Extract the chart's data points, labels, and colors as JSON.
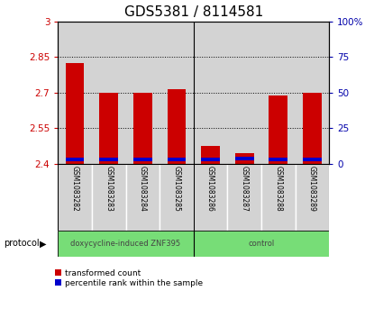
{
  "title": "GDS5381 / 8114581",
  "samples": [
    "GSM1083282",
    "GSM1083283",
    "GSM1083284",
    "GSM1083285",
    "GSM1083286",
    "GSM1083287",
    "GSM1083288",
    "GSM1083289"
  ],
  "red_values": [
    2.825,
    2.7,
    2.7,
    2.715,
    2.475,
    2.445,
    2.685,
    2.7
  ],
  "blue_values": [
    2.41,
    2.41,
    2.41,
    2.41,
    2.41,
    2.415,
    2.41,
    2.41
  ],
  "blue_heights": [
    0.013,
    0.013,
    0.013,
    0.013,
    0.015,
    0.013,
    0.013,
    0.013
  ],
  "base": 2.4,
  "ylim_left": [
    2.4,
    3.0
  ],
  "ylim_right": [
    0,
    100
  ],
  "yticks_left": [
    2.4,
    2.55,
    2.7,
    2.85,
    3.0
  ],
  "yticks_right": [
    0,
    25,
    50,
    75,
    100
  ],
  "ytick_labels_left": [
    "2.4",
    "2.55",
    "2.7",
    "2.85",
    "3"
  ],
  "ytick_labels_right": [
    "0",
    "25",
    "50",
    "75",
    "100%"
  ],
  "grid_lines": [
    2.55,
    2.7,
    2.85
  ],
  "bar_width": 0.55,
  "group1_label": "doxycycline-induced ZNF395",
  "group2_label": "control",
  "group_color": "#77DD77",
  "red_color": "#CC0000",
  "blue_color": "#0000CC",
  "bar_bg_color": "#D3D3D3",
  "protocol_label": "protocol",
  "legend_red": "transformed count",
  "legend_blue": "percentile rank within the sample",
  "left_tick_color": "#CC0000",
  "right_tick_color": "#0000AA",
  "title_fontsize": 11,
  "tick_fontsize": 7.5,
  "sample_fontsize": 5.5,
  "legend_fontsize": 6.5,
  "proto_fontsize": 6
}
